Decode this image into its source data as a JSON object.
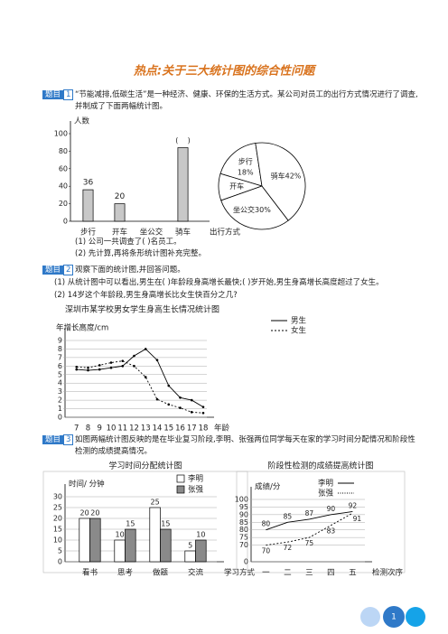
{
  "title": "热点:关于三大统计图的综合性问题",
  "problems": [
    {
      "tag": "题目",
      "num": "1",
      "text": "“节能减排,低碳生活”是一种经济、健康、环保的生活方式。某公司对员工的出行方式情况进行了调查,并制成了下面两幅统计图。",
      "questions": [
        "(1) 公司一共调查了(    )名员工。",
        "(2) 先计算,再将条形统计图补充完整。"
      ]
    },
    {
      "tag": "题目",
      "num": "2",
      "text": "观察下面的统计图,并回答问题。",
      "questions": [
        "(1) 从统计图中可以看出,男生在(    )年龄段身高增长最快;(    )岁开始,男生身高增长高度超过了女生。",
        "(2) 14岁这个年龄段,男生身高增长比女生快百分之几?"
      ]
    },
    {
      "tag": "题目",
      "num": "3",
      "text": "如图两幅统计图反映的是在毕业复习阶段,李明、张强两位同学每天在家的学习时间分配情况和阶段性检测的成绩提高情况。",
      "questions": []
    }
  ],
  "page_number": "1",
  "chart_data": [
    {
      "type": "bar",
      "y_label": "人数",
      "x_label": "出行方式",
      "categories": [
        "步行",
        "开车",
        "坐公交",
        "骑车"
      ],
      "values": [
        36,
        20,
        null,
        84
      ],
      "value_labels": [
        "36",
        "20",
        null,
        null
      ],
      "annotation": "(    )",
      "color": "#c8c8c8",
      "ylim": [
        0,
        100
      ],
      "yticks": [
        0,
        20,
        40,
        60,
        80,
        100
      ]
    },
    {
      "type": "pie",
      "categories": [
        "步行",
        "开车",
        "坐公交",
        "骑车"
      ],
      "values": [
        18,
        10,
        30,
        42
      ],
      "value_labels": [
        "18%",
        null,
        "30%",
        "42%"
      ],
      "color": "#ffffff"
    },
    {
      "type": "line",
      "title": "深圳市某学校男女学生身高生长情况统计图",
      "y_label": "年增长高度/cm",
      "x_label": "年龄",
      "categories": [
        7,
        8,
        9,
        10,
        11,
        12,
        13,
        14,
        15,
        16,
        17,
        18
      ],
      "series": [
        {
          "name": "男生",
          "color": "#000000",
          "dash": false,
          "values": [
            5.6,
            5.5,
            5.6,
            5.8,
            6.0,
            7.2,
            8.0,
            6.7,
            3.7,
            2.3,
            2.0,
            1.2
          ]
        },
        {
          "name": "女生",
          "color": "#000000",
          "dash": true,
          "values": [
            5.9,
            5.8,
            6.1,
            6.4,
            6.6,
            6.0,
            4.7,
            2.1,
            1.5,
            1.1,
            0.6,
            0.5
          ]
        }
      ],
      "ylim": [
        0,
        9
      ],
      "yticks": [
        0,
        1,
        2,
        3,
        4,
        5,
        6,
        7,
        8,
        9
      ],
      "grid": true
    },
    {
      "type": "bar",
      "title": "学习时间分配统计图",
      "y_label": "时间/ 分钟",
      "x_label": "学习方式",
      "categories": [
        "看书",
        "思考",
        "做题",
        "交流"
      ],
      "series": [
        {
          "name": "李明",
          "color": "#ffffff",
          "values": [
            20,
            10,
            25,
            5
          ]
        },
        {
          "name": "张强",
          "color": "#8a8a8a",
          "values": [
            20,
            15,
            15,
            10
          ]
        }
      ],
      "show_values": true,
      "ylim": [
        0,
        30
      ],
      "yticks": [
        0,
        5,
        10,
        15,
        20,
        25,
        30
      ],
      "grid": true
    },
    {
      "type": "line",
      "title": "阶段性检测的成绩提高统计图",
      "y_label": "成绩/分",
      "x_label": "检测次序",
      "categories": [
        "一",
        "二",
        "三",
        "四",
        "五"
      ],
      "series": [
        {
          "name": "李明",
          "color": "#000000",
          "dash": false,
          "values": [
            80,
            85,
            87,
            90,
            92
          ]
        },
        {
          "name": "张强",
          "color": "#000000",
          "dash": true,
          "values": [
            70,
            72,
            75,
            83,
            91
          ]
        }
      ],
      "show_values": true,
      "ylim": [
        0,
        100
      ],
      "axis_break": [
        0,
        65
      ],
      "yticks": [
        0,
        70,
        75,
        80,
        85,
        90,
        95,
        100
      ],
      "grid": true
    }
  ]
}
